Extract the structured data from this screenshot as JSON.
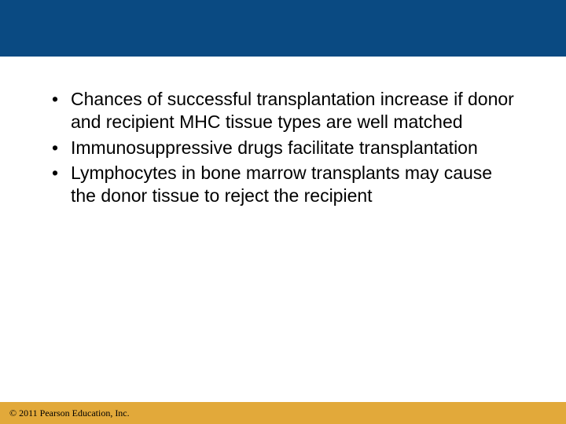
{
  "colors": {
    "header_bg": "#0a4a82",
    "footer_bg": "#e2a93a",
    "body_bg": "#ffffff",
    "text": "#000000"
  },
  "bullets": [
    "Chances of successful transplantation increase if donor and recipient MHC tissue types are well matched",
    "Immunosuppressive drugs facilitate transplantation",
    "Lymphocytes in bone marrow transplants may cause the donor tissue to reject the recipient"
  ],
  "copyright": "© 2011 Pearson Education, Inc."
}
